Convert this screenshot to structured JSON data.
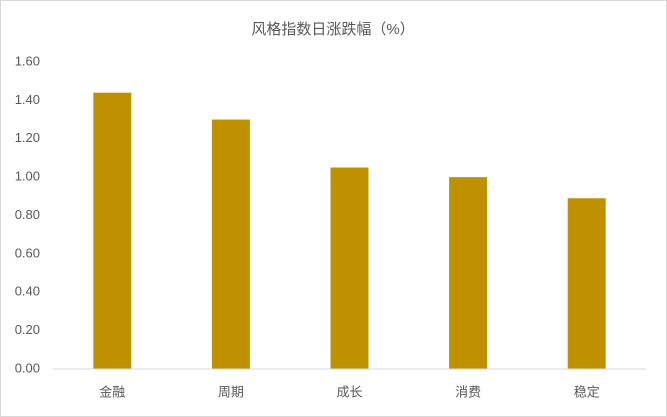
{
  "chart_data": {
    "type": "bar",
    "title": "风格指数日涨跌幅（%）",
    "categories": [
      "金融",
      "周期",
      "成长",
      "消费",
      "稳定"
    ],
    "values": [
      1.44,
      1.3,
      1.05,
      1.0,
      0.89
    ],
    "color": "#bf9000",
    "ylim": [
      0,
      1.6
    ],
    "yticks": [
      {
        "value": 0,
        "label": "0.00"
      },
      {
        "value": 0.2,
        "label": "0.20"
      },
      {
        "value": 0.4,
        "label": "0.40"
      },
      {
        "value": 0.6,
        "label": "0.60"
      },
      {
        "value": 0.8,
        "label": "0.80"
      },
      {
        "value": 1.0,
        "label": "1.00"
      },
      {
        "value": 1.2,
        "label": "1.20"
      },
      {
        "value": 1.4,
        "label": "1.40"
      },
      {
        "value": 1.6,
        "label": "1.60"
      }
    ],
    "grid": false
  }
}
